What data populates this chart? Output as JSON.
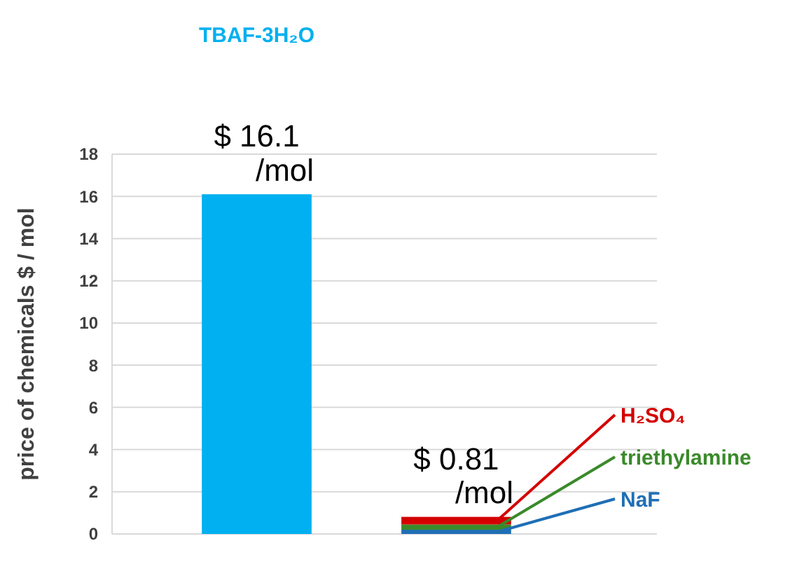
{
  "chart_data": {
    "type": "bar",
    "ylabel": "price of chemicals $ / mol",
    "categories": [
      null,
      null
    ],
    "stacked": true,
    "series": [
      {
        "name": "TBAF-3H₂O",
        "color": "#00b0f0",
        "values": [
          16.1,
          null
        ]
      },
      {
        "name": "NaF",
        "color": "#1f6fb5",
        "values": [
          null,
          0.2
        ]
      },
      {
        "name": "triethylamine",
        "color": "#3a8a2a",
        "values": [
          null,
          0.25
        ]
      },
      {
        "name": "H₂SO₄",
        "color": "#d40000",
        "values": [
          null,
          0.36
        ]
      }
    ],
    "totals": [
      "$ 16.1 /mol",
      "$ 0.81 /mol"
    ],
    "ylim": [
      0,
      18
    ],
    "yticks": [
      0,
      2,
      4,
      6,
      8,
      10,
      12,
      14,
      16,
      18
    ],
    "grid": "y"
  }
}
